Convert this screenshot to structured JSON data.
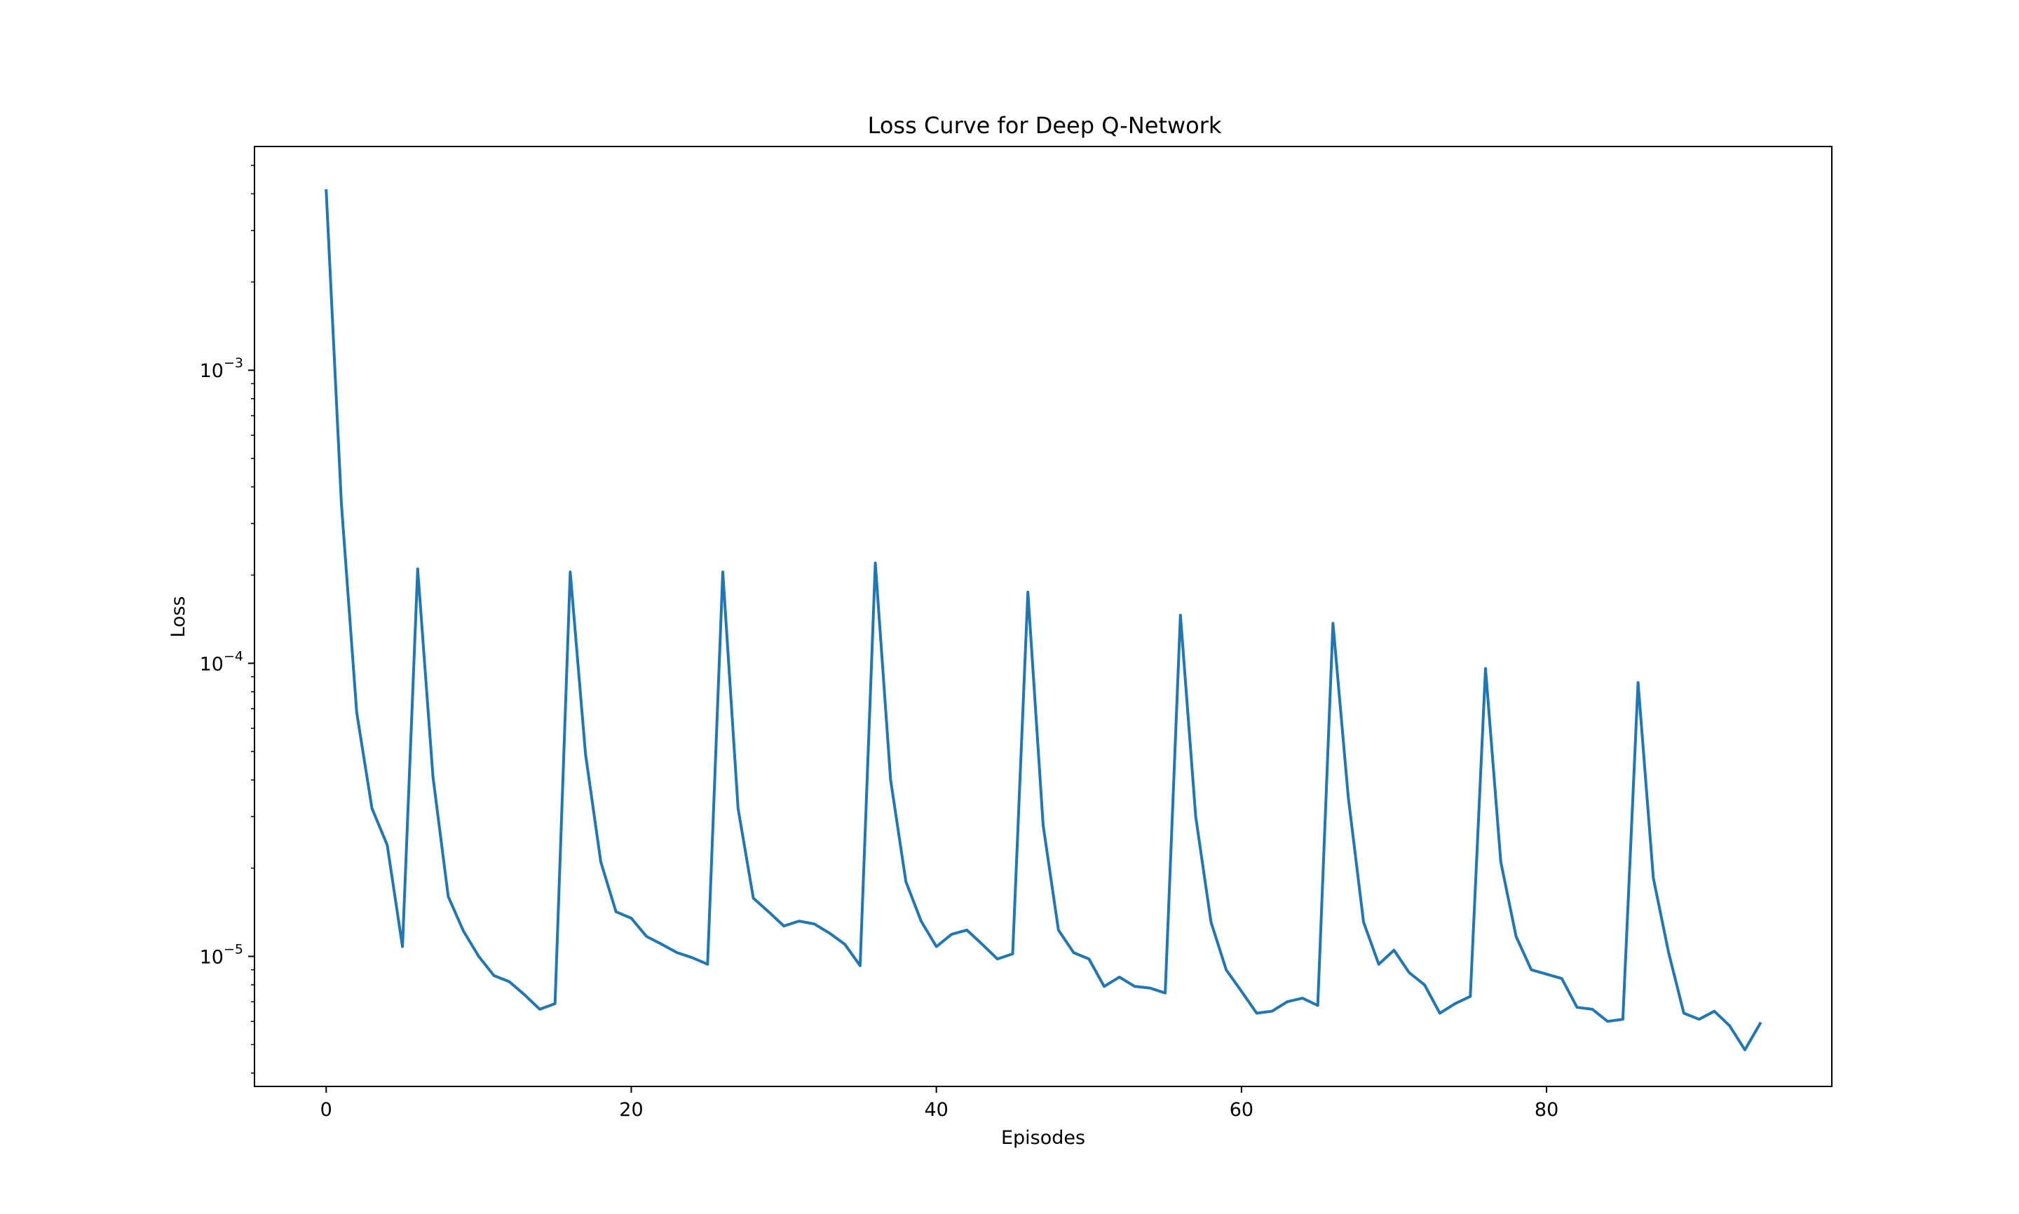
{
  "chart_data": {
    "type": "line",
    "title": "Loss Curve for Deep Q-Network",
    "xlabel": "Episodes",
    "ylabel": "Loss",
    "yscale": "log",
    "xlim": [
      -4.7,
      98.7
    ],
    "ylim": [
      3.6e-06,
      0.0058
    ],
    "x_ticks": [
      0,
      20,
      40,
      60,
      80
    ],
    "x_tick_labels": [
      "0",
      "20",
      "40",
      "60",
      "80"
    ],
    "y_ticks": [
      {
        "value": 0.001,
        "base": "10",
        "exponent": "−3"
      },
      {
        "value": 0.0001,
        "base": "10",
        "exponent": "−4"
      },
      {
        "value": 1e-05,
        "base": "10",
        "exponent": "−5"
      }
    ],
    "grid": false,
    "series": [
      {
        "color": "#1f77b4",
        "x": [
          0,
          1,
          2,
          3,
          4,
          5,
          6,
          7,
          8,
          9,
          10,
          11,
          12,
          13,
          14,
          15,
          16,
          17,
          18,
          19,
          20,
          21,
          22,
          23,
          24,
          25,
          26,
          27,
          28,
          29,
          30,
          31,
          32,
          33,
          34,
          35,
          36,
          37,
          38,
          39,
          40,
          41,
          42,
          43,
          44,
          45,
          46,
          47,
          48,
          49,
          50,
          51,
          52,
          53,
          54,
          55,
          56,
          57,
          58,
          59,
          60,
          61,
          62,
          63,
          64,
          65,
          66,
          67,
          68,
          69,
          70,
          71,
          72,
          73,
          74,
          75,
          76,
          77,
          78,
          79,
          80,
          81,
          82,
          83,
          84,
          85,
          86,
          87,
          88,
          89,
          90,
          91,
          92,
          93,
          94
        ],
        "y": [
          0.0041,
          0.00035,
          6.8e-05,
          3.2e-05,
          2.4e-05,
          1.08e-05,
          0.00021,
          4.1e-05,
          1.6e-05,
          1.22e-05,
          1e-05,
          8.6e-06,
          8.2e-06,
          7.4e-06,
          6.6e-06,
          6.9e-06,
          0.000205,
          4.9e-05,
          2.1e-05,
          1.42e-05,
          1.35e-05,
          1.17e-05,
          1.1e-05,
          1.03e-05,
          9.9e-06,
          9.4e-06,
          0.000205,
          3.2e-05,
          1.58e-05,
          1.42e-05,
          1.27e-05,
          1.32e-05,
          1.29e-05,
          1.2e-05,
          1.1e-05,
          9.3e-06,
          0.00022,
          4e-05,
          1.8e-05,
          1.32e-05,
          1.08e-05,
          1.19e-05,
          1.23e-05,
          1.1e-05,
          9.8e-06,
          1.02e-05,
          0.000175,
          2.8e-05,
          1.23e-05,
          1.03e-05,
          9.8e-06,
          7.9e-06,
          8.5e-06,
          7.9e-06,
          7.8e-06,
          7.5e-06,
          0.000146,
          3e-05,
          1.31e-05,
          9e-06,
          7.6e-06,
          6.4e-06,
          6.5e-06,
          7e-06,
          7.2e-06,
          6.8e-06,
          0.000137,
          3.5e-05,
          1.31e-05,
          9.4e-06,
          1.05e-05,
          8.8e-06,
          8e-06,
          6.4e-06,
          6.9e-06,
          7.3e-06,
          9.6e-05,
          2.1e-05,
          1.17e-05,
          9e-06,
          8.7e-06,
          8.4e-06,
          6.7e-06,
          6.6e-06,
          6e-06,
          6.1e-06,
          8.6e-05,
          1.85e-05,
          1.03e-05,
          6.4e-06,
          6.1e-06,
          6.5e-06,
          5.8e-06,
          4.8e-06,
          5.9e-06
        ]
      }
    ]
  }
}
